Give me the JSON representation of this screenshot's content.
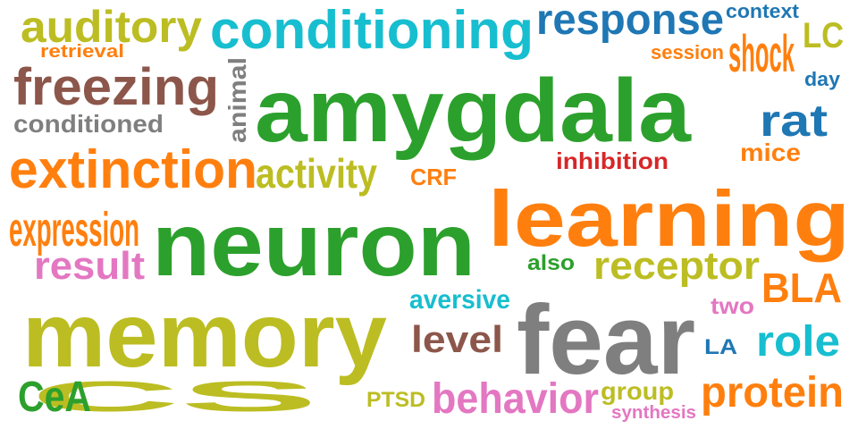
{
  "colors": {
    "green": "#2ca02c",
    "olive": "#bcbd22",
    "cyan": "#17becf",
    "blue": "#1f77b4",
    "orange": "#ff7f0e",
    "brown": "#8c564b",
    "gray": "#7f7f7f",
    "red": "#d62728",
    "pink": "#e377c2"
  },
  "words": [
    {
      "text": "amygdala",
      "color": "green"
    },
    {
      "text": "neuron",
      "color": "green"
    },
    {
      "text": "memory",
      "color": "olive"
    },
    {
      "text": "learning",
      "color": "orange"
    },
    {
      "text": "fear",
      "color": "gray"
    },
    {
      "text": "conditioning",
      "color": "cyan"
    },
    {
      "text": "extinction",
      "color": "orange"
    },
    {
      "text": "freezing",
      "color": "brown"
    },
    {
      "text": "auditory",
      "color": "olive"
    },
    {
      "text": "response",
      "color": "blue"
    },
    {
      "text": "CS",
      "color": "olive"
    },
    {
      "text": "expression",
      "color": "orange"
    },
    {
      "text": "shock",
      "color": "orange"
    },
    {
      "text": "activity",
      "color": "olive"
    },
    {
      "text": "receptor",
      "color": "olive"
    },
    {
      "text": "protein",
      "color": "orange"
    },
    {
      "text": "behavior",
      "color": "pink"
    },
    {
      "text": "rat",
      "color": "blue"
    },
    {
      "text": "role",
      "color": "cyan"
    },
    {
      "text": "BLA",
      "color": "orange"
    },
    {
      "text": "CeA",
      "color": "green"
    },
    {
      "text": "result",
      "color": "pink"
    },
    {
      "text": "level",
      "color": "brown"
    },
    {
      "text": "conditioned",
      "color": "gray"
    },
    {
      "text": "LC",
      "color": "olive"
    },
    {
      "text": "aversive",
      "color": "cyan"
    },
    {
      "text": "animal",
      "color": "gray"
    },
    {
      "text": "inhibition",
      "color": "red"
    },
    {
      "text": "mice",
      "color": "orange"
    },
    {
      "text": "group",
      "color": "olive"
    },
    {
      "text": "two",
      "color": "pink"
    },
    {
      "text": "CRF",
      "color": "orange"
    },
    {
      "text": "context",
      "color": "blue"
    },
    {
      "text": "also",
      "color": "green"
    },
    {
      "text": "PTSD",
      "color": "olive"
    },
    {
      "text": "LA",
      "color": "blue"
    },
    {
      "text": "retrieval",
      "color": "orange"
    },
    {
      "text": "session",
      "color": "orange"
    },
    {
      "text": "day",
      "color": "blue"
    },
    {
      "text": "synthesis",
      "color": "pink"
    }
  ]
}
